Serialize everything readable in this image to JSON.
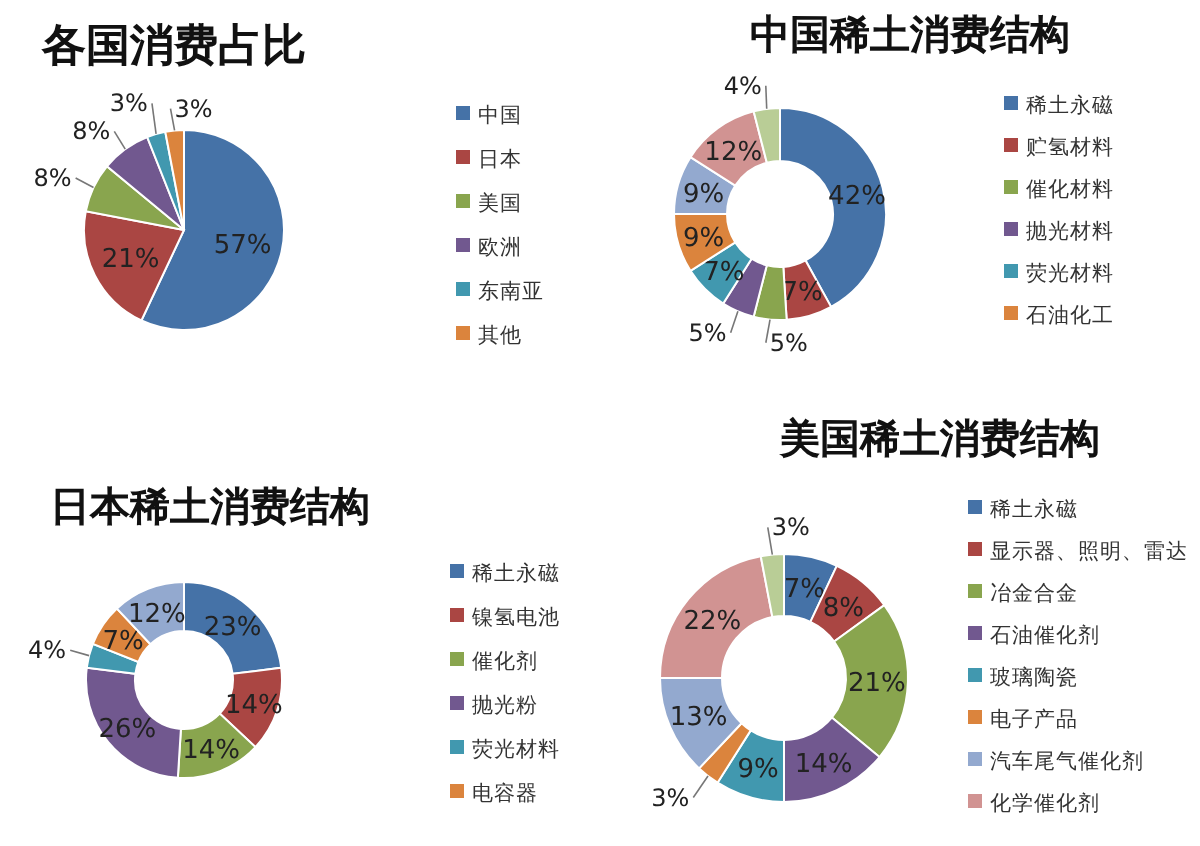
{
  "chart_data": [
    {
      "type": "pie",
      "title": "各国消费占比",
      "categories": [
        "中国",
        "日本",
        "美国",
        "欧洲",
        "东南亚",
        "其他"
      ],
      "values": [
        57,
        21,
        8,
        8,
        3,
        3
      ],
      "value_labels": [
        "57%",
        "21%",
        "8%",
        "8%",
        "3%",
        "3%"
      ],
      "colors": [
        "#4572a7",
        "#aa4643",
        "#89a54e",
        "#71588f",
        "#4198af",
        "#db843d"
      ],
      "legend": "right"
    },
    {
      "type": "donut",
      "title": "中国稀土消费结构",
      "categories": [
        "稀土永磁",
        "贮氢材料",
        "催化材料",
        "抛光材料",
        "荧光材料",
        "石油化工",
        null,
        null,
        null
      ],
      "values": [
        42,
        7,
        5,
        5,
        7,
        9,
        9,
        12,
        4
      ],
      "value_labels": [
        "42%",
        "7%",
        "5%",
        "5%",
        "7%",
        "9%",
        "9%",
        "12%",
        "4%"
      ],
      "colors": [
        "#4572a7",
        "#aa4643",
        "#89a54e",
        "#71588f",
        "#4198af",
        "#db843d",
        "#93a9cf",
        "#d19392",
        "#b9cd96"
      ],
      "legend": "right"
    },
    {
      "type": "donut",
      "title": "日本稀土消费结构",
      "categories": [
        "稀土永磁",
        "镍氢电池",
        "催化剂",
        "抛光粉",
        "荧光材料",
        "电容器",
        null
      ],
      "values": [
        23,
        14,
        14,
        26,
        4,
        7,
        12
      ],
      "value_labels": [
        "23%",
        "14%",
        "14%",
        "26%",
        "4%",
        "7%",
        "12%"
      ],
      "colors": [
        "#4572a7",
        "#aa4643",
        "#89a54e",
        "#71588f",
        "#4198af",
        "#db843d",
        "#93a9cf"
      ],
      "legend": "right"
    },
    {
      "type": "donut",
      "title": "美国稀土消费结构",
      "categories": [
        "稀土永磁",
        "显示器、照明、雷达",
        "冶金合金",
        "石油催化剂",
        "玻璃陶瓷",
        "电子产品",
        "汽车尾气催化剂",
        "化学催化剂",
        null
      ],
      "values": [
        7,
        8,
        21,
        14,
        9,
        3,
        13,
        22,
        3
      ],
      "value_labels": [
        "7%",
        "8%",
        "21%",
        "14%",
        "9%",
        "3%",
        "13%",
        "22%",
        "3%"
      ],
      "colors": [
        "#4572a7",
        "#aa4643",
        "#89a54e",
        "#71588f",
        "#4198af",
        "#db843d",
        "#93a9cf",
        "#d19392",
        "#b9cd96"
      ],
      "legend": "right"
    }
  ]
}
